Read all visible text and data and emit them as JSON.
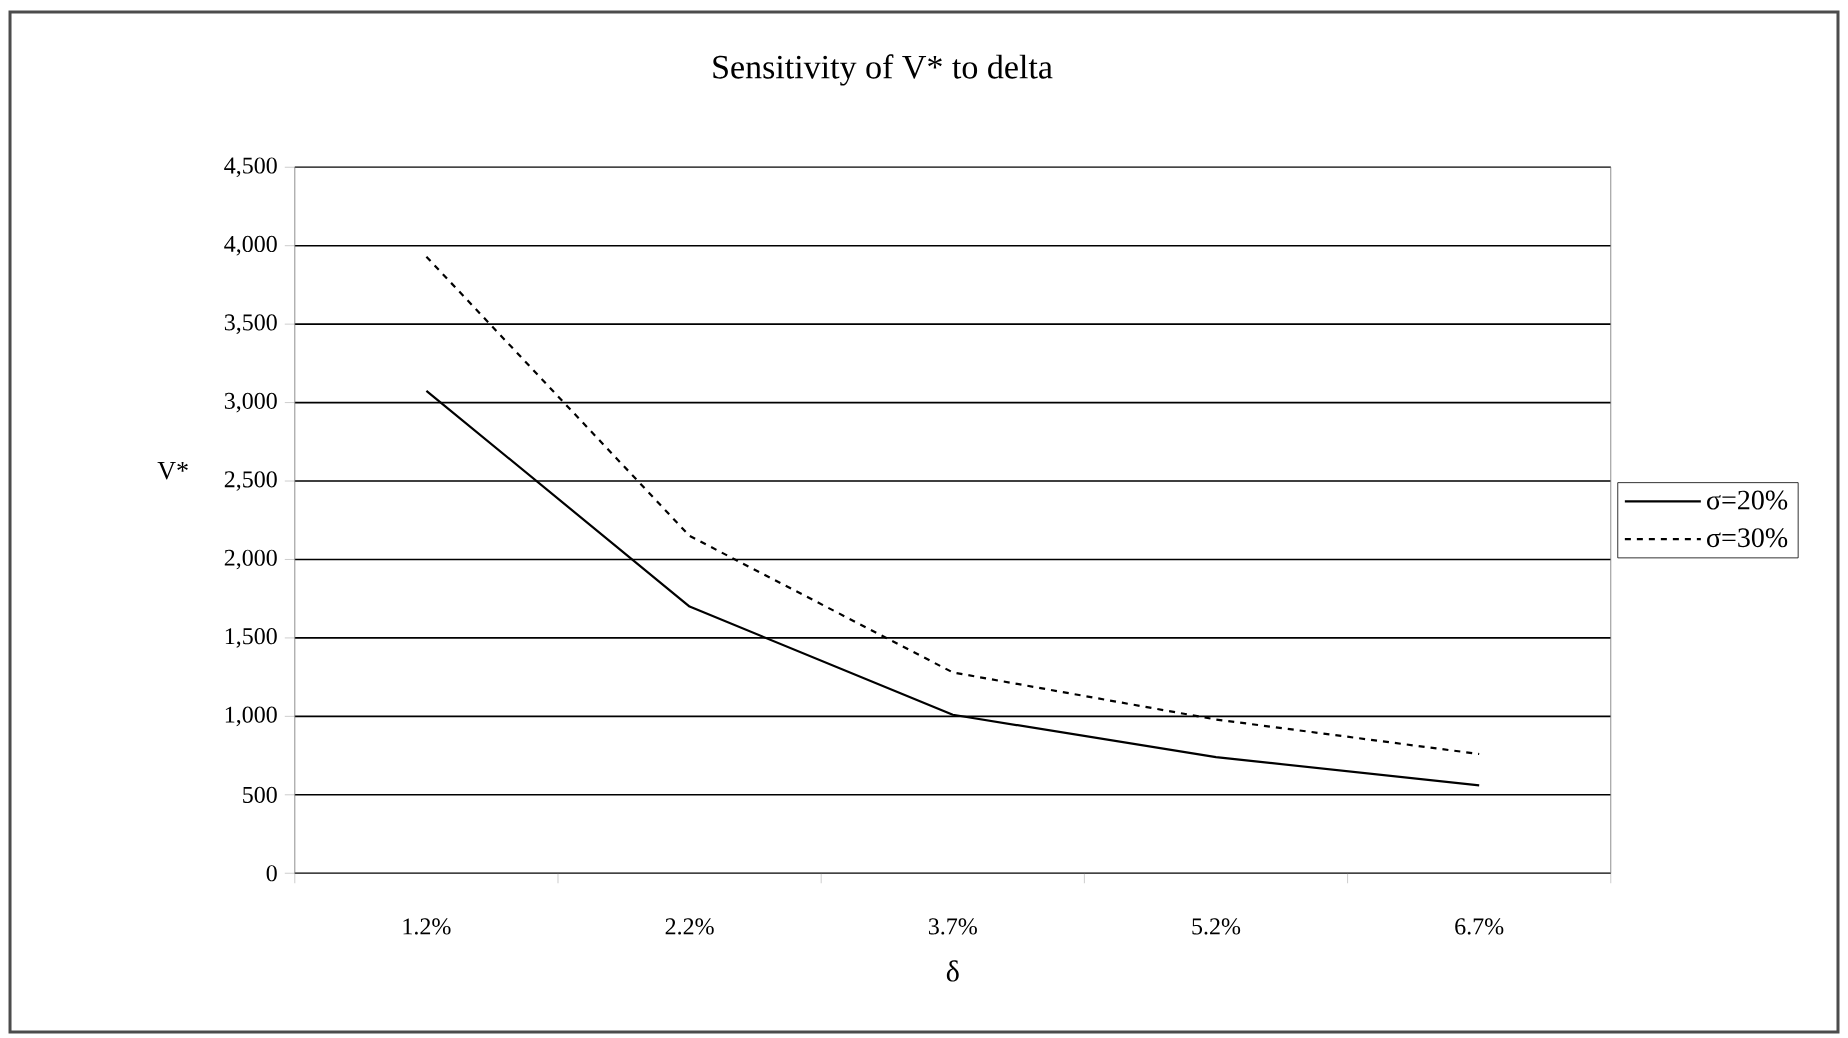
{
  "chart_data": {
    "type": "line",
    "title": "Sensitivity of V* to delta",
    "xlabel": "δ",
    "ylabel": "V*",
    "categories": [
      "1.2%",
      "2.2%",
      "3.7%",
      "5.2%",
      "6.7%"
    ],
    "series": [
      {
        "name": "σ=20%",
        "color": "#000000",
        "line_style": "solid",
        "values": [
          3075,
          1700,
          1010,
          740,
          560
        ]
      },
      {
        "name": "σ=30%",
        "color": "#000000",
        "line_style": "dashed",
        "values": [
          3930,
          2150,
          1280,
          980,
          760
        ]
      }
    ],
    "ylim": [
      0,
      4500
    ],
    "yticks": [
      0,
      500,
      {
        "value": 1000,
        "label": "1,000"
      },
      {
        "value": 1500,
        "label": "1,500"
      },
      {
        "value": 2000,
        "label": "2,000"
      },
      {
        "value": 2500,
        "label": "2,500"
      },
      {
        "value": 3000,
        "label": "3,000"
      },
      {
        "value": 3500,
        "label": "3,500"
      },
      {
        "value": 4000,
        "label": "4,000"
      },
      {
        "value": 4500,
        "label": "4,500"
      }
    ],
    "grid": "y",
    "legend": "right",
    "marker": "none"
  }
}
